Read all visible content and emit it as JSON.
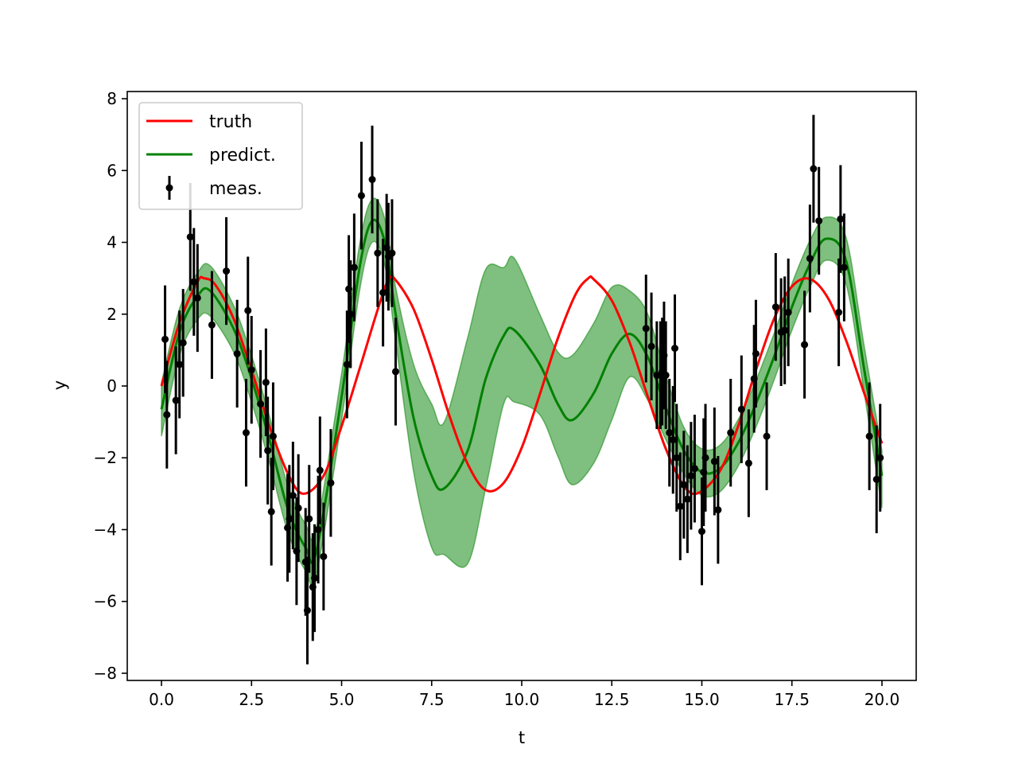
{
  "chart_data": {
    "type": "line",
    "title": "",
    "xlabel": "t",
    "ylabel": "y",
    "xlim": [
      -0.95,
      20.95
    ],
    "ylim": [
      -8.2,
      8.2
    ],
    "xticks": [
      0.0,
      2.5,
      5.0,
      7.5,
      10.0,
      12.5,
      15.0,
      17.5,
      20.0
    ],
    "xtick_labels": [
      "0.0",
      "2.5",
      "5.0",
      "7.5",
      "10.0",
      "12.5",
      "15.0",
      "17.5",
      "20.0"
    ],
    "yticks": [
      -8,
      -6,
      -4,
      -2,
      0,
      2,
      4,
      6,
      8
    ],
    "ytick_labels": [
      "−8",
      "−6",
      "−4",
      "−2",
      "0",
      "2",
      "4",
      "6",
      "8"
    ],
    "grid": false,
    "legend": {
      "position": "upper-left",
      "entries": [
        {
          "label": "truth",
          "color": "#ff0000",
          "kind": "line"
        },
        {
          "label": "predict.",
          "color": "#008000",
          "kind": "line"
        },
        {
          "label": "meas.",
          "color": "#000000",
          "kind": "errorbar"
        }
      ]
    },
    "series": [
      {
        "name": "truth",
        "color": "#ff0000",
        "kind": "line",
        "x": [
          0.0,
          0.5,
          1.0,
          1.18,
          1.5,
          2.0,
          2.5,
          3.0,
          3.5,
          3.93,
          4.5,
          5.0,
          5.5,
          6.0,
          6.3,
          6.5,
          7.0,
          7.5,
          8.0,
          8.5,
          9.0,
          9.5,
          10.0,
          10.5,
          11.0,
          11.5,
          11.85,
          12.0,
          12.5,
          13.0,
          13.5,
          14.0,
          14.5,
          14.9,
          15.5,
          16.0,
          16.5,
          17.0,
          17.5,
          18.0,
          18.5,
          19.0,
          19.5,
          20.0
        ],
        "y": [
          0.0,
          1.76,
          2.9,
          3.0,
          2.81,
          1.88,
          0.44,
          -1.13,
          -2.42,
          -3.0,
          -2.5,
          -1.12,
          0.48,
          2.12,
          2.96,
          2.95,
          2.14,
          0.74,
          -0.85,
          -2.17,
          -2.9,
          -2.7,
          -1.72,
          -0.24,
          1.32,
          2.56,
          3.0,
          2.97,
          2.38,
          1.2,
          -0.3,
          -1.75,
          -2.78,
          -2.98,
          -2.37,
          -1.14,
          0.44,
          1.86,
          2.77,
          2.98,
          2.45,
          1.28,
          -0.18,
          -1.6
        ]
      },
      {
        "name": "predict.",
        "color": "#008000",
        "kind": "line",
        "x": [
          0.0,
          0.5,
          1.0,
          1.35,
          2.0,
          2.5,
          3.0,
          3.5,
          4.0,
          4.3,
          5.0,
          5.5,
          5.85,
          6.2,
          6.5,
          7.0,
          7.5,
          7.85,
          8.5,
          9.0,
          9.5,
          9.8,
          10.5,
          11.0,
          11.4,
          12.0,
          12.5,
          13.0,
          13.5,
          14.0,
          14.5,
          15.0,
          15.5,
          16.0,
          16.5,
          17.0,
          17.5,
          18.0,
          18.45,
          19.0,
          19.5,
          20.0
        ],
        "y": [
          -0.65,
          1.5,
          2.5,
          2.65,
          1.6,
          0.2,
          -1.5,
          -3.4,
          -4.5,
          -4.6,
          -0.3,
          3.3,
          4.6,
          4.0,
          2.0,
          -0.9,
          -2.5,
          -2.85,
          -1.8,
          0.2,
          1.4,
          1.55,
          0.6,
          -0.5,
          -0.95,
          -0.2,
          0.9,
          1.45,
          0.8,
          -0.6,
          -1.8,
          -2.4,
          -2.3,
          -1.6,
          -0.5,
          0.8,
          2.2,
          3.4,
          4.1,
          3.5,
          0.5,
          -2.5
        ]
      },
      {
        "name": "predict. band",
        "color": "#008000",
        "kind": "band",
        "x": [
          0.0,
          0.5,
          1.0,
          1.35,
          2.0,
          2.5,
          3.0,
          3.5,
          4.0,
          4.3,
          5.0,
          5.5,
          5.85,
          6.2,
          6.5,
          7.0,
          7.5,
          7.85,
          8.5,
          9.0,
          9.5,
          9.8,
          10.5,
          11.0,
          11.4,
          12.0,
          12.5,
          13.0,
          13.5,
          14.0,
          14.5,
          15.0,
          15.5,
          16.0,
          16.5,
          17.0,
          17.5,
          18.0,
          18.45,
          19.0,
          19.5,
          20.0
        ],
        "upper": [
          0.1,
          2.15,
          3.15,
          3.35,
          2.25,
          0.85,
          -0.85,
          -2.75,
          -3.85,
          -3.95,
          0.35,
          3.95,
          5.2,
          4.65,
          2.75,
          0.6,
          -0.5,
          -1.0,
          1.35,
          3.25,
          3.3,
          3.55,
          2.0,
          0.95,
          0.85,
          1.75,
          2.75,
          2.65,
          2.0,
          0.3,
          -1.15,
          -1.75,
          -1.65,
          -0.95,
          0.15,
          1.45,
          2.85,
          4.05,
          4.7,
          4.15,
          1.15,
          -1.8
        ],
        "lower": [
          -1.4,
          0.85,
          1.85,
          1.95,
          0.95,
          -0.45,
          -2.15,
          -4.05,
          -5.15,
          -5.25,
          -0.95,
          2.65,
          4.0,
          3.35,
          1.25,
          -2.4,
          -4.5,
          -4.7,
          -4.95,
          -2.85,
          -0.5,
          -0.45,
          -0.8,
          -1.95,
          -2.75,
          -2.15,
          -0.95,
          0.25,
          -0.4,
          -1.5,
          -2.45,
          -3.05,
          -2.95,
          -2.25,
          -1.15,
          0.15,
          1.55,
          2.75,
          3.5,
          2.85,
          -0.15,
          -3.4
        ]
      },
      {
        "name": "meas.",
        "color": "#000000",
        "kind": "errorbar",
        "yerr": 1.5,
        "x": [
          0.1,
          0.15,
          0.4,
          0.5,
          0.6,
          0.8,
          0.9,
          1.0,
          1.4,
          1.8,
          2.1,
          2.35,
          2.4,
          2.5,
          2.75,
          2.9,
          2.95,
          3.05,
          3.1,
          3.5,
          3.55,
          3.65,
          3.75,
          3.8,
          4.0,
          4.05,
          4.1,
          4.2,
          4.25,
          4.35,
          4.4,
          4.5,
          4.7,
          5.15,
          5.2,
          5.25,
          5.35,
          5.55,
          5.85,
          6.0,
          6.15,
          6.25,
          6.3,
          6.4,
          6.5,
          13.45,
          13.6,
          13.75,
          13.85,
          13.9,
          13.95,
          14.0,
          14.1,
          14.2,
          14.25,
          14.3,
          14.4,
          14.5,
          14.6,
          14.7,
          14.8,
          15.0,
          15.05,
          15.1,
          15.35,
          15.45,
          15.8,
          16.1,
          16.3,
          16.45,
          16.5,
          16.8,
          17.05,
          17.2,
          17.3,
          17.4,
          17.85,
          18.0,
          18.1,
          18.25,
          18.8,
          18.85,
          18.95,
          19.65,
          19.85,
          19.95
        ],
        "y": [
          1.3,
          -0.8,
          -0.4,
          0.6,
          1.2,
          4.15,
          2.9,
          2.45,
          1.7,
          3.2,
          0.9,
          -1.3,
          2.1,
          0.45,
          -0.5,
          0.1,
          -1.8,
          -3.5,
          -1.4,
          -3.95,
          -3.7,
          -3.05,
          -4.6,
          -3.4,
          -4.9,
          -6.25,
          -3.7,
          -5.6,
          -5.35,
          -4.0,
          -2.35,
          -4.75,
          -2.7,
          0.6,
          2.7,
          2.0,
          3.3,
          5.3,
          5.75,
          3.7,
          2.6,
          3.85,
          3.6,
          3.7,
          0.4,
          1.6,
          1.1,
          0.3,
          0.3,
          0.4,
          0.85,
          0.3,
          -1.3,
          -1.5,
          1.05,
          -2.0,
          -3.35,
          -2.75,
          -3.15,
          -2.5,
          -2.3,
          -4.05,
          -2.4,
          -2.0,
          -2.1,
          -3.45,
          -1.3,
          -0.65,
          -2.15,
          0.2,
          0.9,
          -1.4,
          2.2,
          1.5,
          1.55,
          2.05,
          1.15,
          3.55,
          6.05,
          4.6,
          2.05,
          4.65,
          3.3,
          -1.4,
          -2.6,
          -2.0
        ]
      }
    ]
  }
}
